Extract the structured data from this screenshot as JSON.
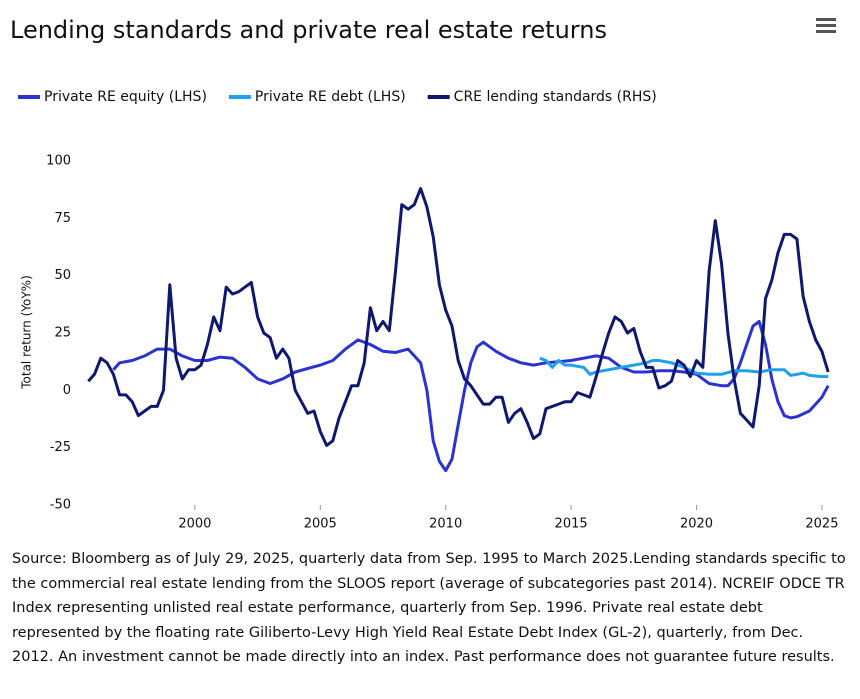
{
  "chart_data": {
    "type": "line",
    "title": "Lending standards and private real estate returns",
    "y_label": "Total return (YoY%)",
    "xlim": [
      1995.5,
      2025.8
    ],
    "xticks": [
      2000,
      2005,
      2010,
      2015,
      2020,
      2025
    ],
    "ylim": [
      -50,
      100
    ],
    "yticks": [
      -50,
      -25,
      0,
      25,
      50,
      75,
      100
    ],
    "series": [
      {
        "name": "Private RE equity (LHS)",
        "color": "#2b32d4",
        "x": [
          1996.75,
          1997,
          1997.5,
          1998,
          1998.5,
          1999,
          1999.5,
          2000,
          2000.5,
          2001,
          2001.5,
          2002,
          2002.5,
          2003,
          2003.5,
          2004,
          2004.5,
          2005,
          2005.5,
          2006,
          2006.5,
          2007,
          2007.5,
          2008,
          2008.5,
          2009,
          2009.25,
          2009.5,
          2009.75,
          2010,
          2010.25,
          2010.5,
          2010.75,
          2011,
          2011.25,
          2011.5,
          2012,
          2012.5,
          2013,
          2013.5,
          2014,
          2014.5,
          2015,
          2015.5,
          2016,
          2016.5,
          2017,
          2017.5,
          2018,
          2018.5,
          2019,
          2019.5,
          2020,
          2020.5,
          2021,
          2021.25,
          2021.5,
          2021.75,
          2022,
          2022.25,
          2022.5,
          2022.75,
          2023,
          2023.25,
          2023.5,
          2023.75,
          2024,
          2024.5,
          2025,
          2025.25
        ],
        "values": [
          9,
          12,
          13,
          15,
          18,
          18,
          15,
          13,
          13,
          14.5,
          14,
          10,
          5,
          3,
          5,
          8,
          9.5,
          11,
          13,
          18,
          22,
          20,
          17,
          16.5,
          18,
          12,
          0,
          -22,
          -31,
          -35,
          -30,
          -15,
          0,
          12,
          19,
          21,
          17,
          14,
          12,
          11,
          12,
          12.5,
          13,
          14,
          15,
          14,
          10,
          8,
          8,
          8.5,
          8.5,
          8,
          7,
          3,
          2,
          2,
          5,
          12,
          20,
          28,
          30,
          20,
          5,
          -5,
          -11,
          -12,
          -11.5,
          -9,
          -3,
          2
        ]
      },
      {
        "name": "Private RE debt (LHS)",
        "color": "#1fa0ee",
        "x": [
          2013.75,
          2014,
          2014.25,
          2014.5,
          2014.75,
          2015,
          2015.25,
          2015.5,
          2015.75,
          2016,
          2016.5,
          2017,
          2017.5,
          2018,
          2018.25,
          2018.5,
          2019,
          2019.5,
          2020,
          2020.5,
          2021,
          2021.5,
          2022,
          2022.5,
          2023,
          2023.5,
          2023.75,
          2024,
          2024.25,
          2024.5,
          2025,
          2025.25
        ],
        "values": [
          14,
          13,
          10,
          13,
          11,
          11,
          10.5,
          10,
          7,
          8,
          9,
          10,
          11,
          12,
          13,
          13,
          12,
          10,
          7.5,
          7,
          7,
          8.5,
          8.5,
          8,
          9,
          9,
          6.5,
          7,
          7.5,
          6.5,
          6,
          6
        ]
      },
      {
        "name": "CRE lending standards (RHS)",
        "color": "#0e1870",
        "x": [
          1995.75,
          1996,
          1996.25,
          1996.5,
          1996.75,
          1997,
          1997.25,
          1997.5,
          1997.75,
          1998,
          1998.25,
          1998.5,
          1998.75,
          1999,
          1999.25,
          1999.5,
          1999.75,
          2000,
          2000.25,
          2000.5,
          2000.75,
          2001,
          2001.25,
          2001.5,
          2001.75,
          2002,
          2002.25,
          2002.5,
          2002.75,
          2003,
          2003.25,
          2003.5,
          2003.75,
          2004,
          2004.25,
          2004.5,
          2004.75,
          2005,
          2005.25,
          2005.5,
          2005.75,
          2006,
          2006.25,
          2006.5,
          2006.75,
          2007,
          2007.25,
          2007.5,
          2007.75,
          2008,
          2008.25,
          2008.5,
          2008.75,
          2009,
          2009.25,
          2009.5,
          2009.75,
          2010,
          2010.25,
          2010.5,
          2010.75,
          2011,
          2011.25,
          2011.5,
          2011.75,
          2012,
          2012.25,
          2012.5,
          2012.75,
          2013,
          2013.25,
          2013.5,
          2013.75,
          2014,
          2014.5,
          2014.75,
          2015,
          2015.25,
          2015.5,
          2015.75,
          2016,
          2016.25,
          2016.5,
          2016.75,
          2017,
          2017.25,
          2017.5,
          2017.75,
          2018,
          2018.25,
          2018.5,
          2018.75,
          2019,
          2019.25,
          2019.5,
          2019.75,
          2020,
          2020.25,
          2020.5,
          2020.75,
          2021,
          2021.25,
          2021.5,
          2021.75,
          2022,
          2022.25,
          2022.5,
          2022.75,
          2023,
          2023.25,
          2023.5,
          2023.75,
          2024,
          2024.25,
          2024.5,
          2024.75,
          2025,
          2025.25
        ],
        "values": [
          4,
          7,
          14,
          12,
          7,
          -2,
          -2,
          -5,
          -11,
          -9,
          -7,
          -7,
          0,
          46,
          14,
          5,
          9,
          9,
          11,
          20,
          32,
          26,
          45,
          42,
          43,
          45,
          47,
          32,
          25,
          23,
          14,
          18,
          14,
          0,
          -5,
          -10,
          -9,
          -18,
          -24,
          -22,
          -12,
          -5,
          2,
          2,
          12,
          36,
          26,
          30,
          26,
          52,
          81,
          79,
          81,
          88,
          80,
          67,
          46,
          35,
          28,
          13,
          5,
          2,
          -2,
          -6,
          -6,
          -3,
          -3,
          -14,
          -10,
          -8,
          -14,
          -21,
          -19,
          -8,
          -6,
          -5,
          -5,
          -1,
          -2,
          -3,
          6,
          16,
          25,
          32,
          30,
          25,
          27,
          17,
          10,
          10,
          1,
          2,
          4,
          13,
          11,
          6,
          13,
          10,
          52,
          74,
          55,
          25,
          5,
          -10,
          -13,
          -16,
          2,
          40,
          48,
          60,
          68,
          68,
          66,
          41,
          30,
          22,
          17,
          8
        ]
      }
    ],
    "note": "Source: Bloomberg as of July 29, 2025, quarterly data from Sep. 1995 to March 2025.Lending standards specific to the commercial real estate lending from the SLOOS report (average of subcategories past 2014). NCREIF ODCE TR Index representing unlisted real estate performance, quarterly from Sep. 1996. Private real estate debt represented by the floating rate Giliberto-Levy High Yield Real Estate Debt Index (GL-2), quarterly, from Dec. 2012. An investment cannot be made directly into an index. Past performance does not guarantee future results."
  }
}
